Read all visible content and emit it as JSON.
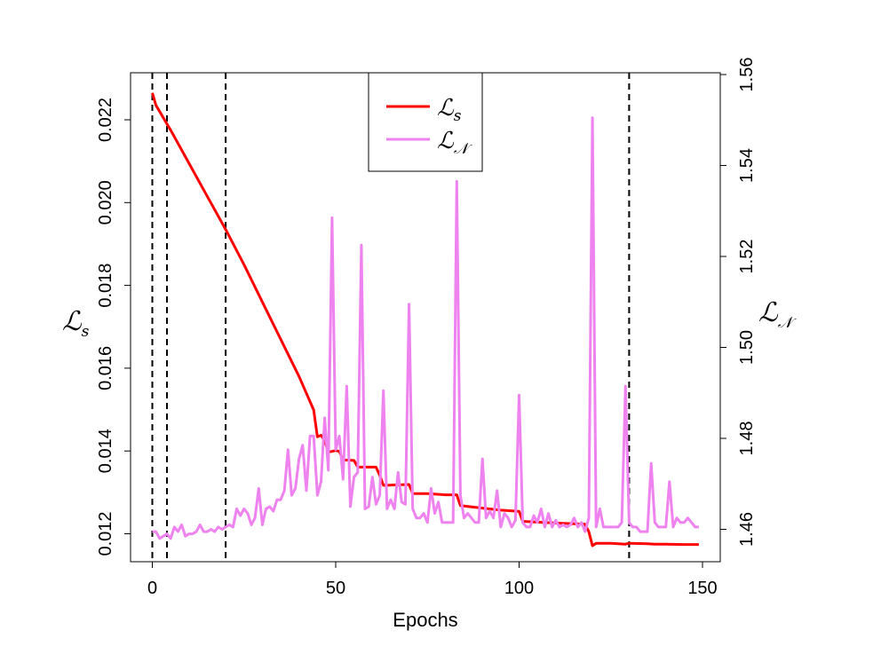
{
  "chart_data": {
    "type": "line",
    "title": "",
    "xlabel": "Epochs",
    "ylabel_left": {
      "main": "ℒ",
      "sub": "s"
    },
    "ylabel_right": {
      "main": "ℒ",
      "sub": "𝒩"
    },
    "xlim": [
      -6,
      155
    ],
    "ylim_left": [
      0.0113,
      0.0233
    ],
    "ylim_right": [
      1.455,
      1.562
    ],
    "x_ticks": [
      0,
      50,
      100,
      150
    ],
    "x_tick_labels": [
      "0",
      "50",
      "100",
      "150"
    ],
    "y_left_ticks": [
      0.012,
      0.014,
      0.016,
      0.018,
      0.02,
      0.022
    ],
    "y_left_tick_labels": [
      "0.012",
      "0.014",
      "0.016",
      "0.018",
      "0.020",
      "0.022"
    ],
    "y_right_ticks": [
      1.46,
      1.48,
      1.5,
      1.52,
      1.54,
      1.56
    ],
    "y_right_tick_labels": [
      "1.46",
      "1.48",
      "1.50",
      "1.52",
      "1.54",
      "1.56"
    ],
    "vlines": [
      0,
      4,
      20,
      130
    ],
    "vline_color": "#000000",
    "legend_position": "top-center",
    "grid": false,
    "series": [
      {
        "name": "ℒs",
        "legend_main": "ℒ",
        "legend_sub": "s",
        "axis": "left",
        "color": "#ff0000",
        "x": [
          0,
          1,
          2,
          3,
          4,
          5,
          10,
          15,
          20,
          25,
          30,
          35,
          40,
          44,
          45,
          46,
          47,
          48,
          50,
          51,
          52,
          53,
          55,
          56,
          57,
          60,
          61,
          62,
          63,
          64,
          66,
          70,
          71,
          75,
          80,
          83,
          84,
          90,
          95,
          100,
          101,
          105,
          110,
          115,
          118,
          119,
          120,
          121,
          125,
          129,
          130,
          135,
          137,
          140,
          145,
          149
        ],
        "y": [
          0.02265,
          0.02235,
          0.0222,
          0.02205,
          0.0219,
          0.02175,
          0.02095,
          0.02015,
          0.01935,
          0.0185,
          0.0176,
          0.0167,
          0.0158,
          0.01499,
          0.01434,
          0.01438,
          0.01425,
          0.01397,
          0.01401,
          0.01399,
          0.01378,
          0.01378,
          0.01377,
          0.01361,
          0.01361,
          0.01361,
          0.01361,
          0.01341,
          0.01317,
          0.01317,
          0.01318,
          0.01319,
          0.01297,
          0.01297,
          0.01294,
          0.01294,
          0.01268,
          0.01262,
          0.01257,
          0.01254,
          0.0123,
          0.01228,
          0.01226,
          0.01224,
          0.01223,
          0.01205,
          0.01171,
          0.01177,
          0.01177,
          0.01175,
          0.01177,
          0.01176,
          0.01175,
          0.01175,
          0.01174,
          0.01174
        ]
      },
      {
        "name": "ℒ𝒩",
        "legend_main": "ℒ",
        "legend_sub": "𝒩",
        "axis": "right",
        "color": "#ee82ee",
        "x": [
          0,
          1,
          2,
          3,
          4,
          5,
          6,
          7,
          8,
          9,
          10,
          11,
          12,
          13,
          14,
          15,
          16,
          17,
          18,
          19,
          20,
          21,
          22,
          23,
          24,
          25,
          26,
          27,
          28,
          29,
          30,
          31,
          32,
          33,
          34,
          35,
          36,
          37,
          38,
          39,
          40,
          41,
          42,
          43,
          44,
          45,
          46,
          47,
          48,
          49,
          50,
          51,
          52,
          53,
          54,
          55,
          56,
          57,
          58,
          59,
          60,
          61,
          62,
          63,
          64,
          65,
          66,
          67,
          68,
          69,
          70,
          71,
          72,
          73,
          74,
          75,
          76,
          77,
          78,
          79,
          80,
          81,
          82,
          83,
          84,
          85,
          86,
          87,
          88,
          89,
          90,
          91,
          92,
          93,
          94,
          95,
          96,
          97,
          98,
          99,
          100,
          101,
          102,
          103,
          104,
          105,
          106,
          107,
          108,
          109,
          110,
          111,
          112,
          113,
          114,
          115,
          116,
          117,
          118,
          119,
          120,
          121,
          122,
          123,
          124,
          125,
          126,
          127,
          128,
          129,
          130,
          131,
          132,
          133,
          134,
          135,
          136,
          137,
          138,
          139,
          140,
          141,
          142,
          143,
          144,
          145,
          146,
          147,
          148,
          149
        ],
        "y": [
          1.4595,
          1.4595,
          1.458,
          1.4585,
          1.459,
          1.458,
          1.4605,
          1.4595,
          1.461,
          1.4585,
          1.459,
          1.459,
          1.4595,
          1.461,
          1.4595,
          1.4595,
          1.46,
          1.4595,
          1.4605,
          1.46,
          1.4605,
          1.461,
          1.4605,
          1.4645,
          1.463,
          1.4645,
          1.4635,
          1.461,
          1.4625,
          1.469,
          1.461,
          1.4645,
          1.465,
          1.464,
          1.4665,
          1.4665,
          1.4685,
          1.4775,
          1.4675,
          1.469,
          1.4755,
          1.4785,
          1.4685,
          1.4805,
          1.4805,
          1.4675,
          1.4705,
          1.4845,
          1.473,
          1.5285,
          1.4775,
          1.4805,
          1.471,
          1.4915,
          1.465,
          1.4715,
          1.4725,
          1.5225,
          1.4645,
          1.465,
          1.4715,
          1.4655,
          1.4675,
          1.4905,
          1.4645,
          1.4665,
          1.4645,
          1.4725,
          1.466,
          1.4655,
          1.5095,
          1.4645,
          1.4625,
          1.4625,
          1.4635,
          1.4615,
          1.469,
          1.4635,
          1.466,
          1.4615,
          1.4615,
          1.4615,
          1.4615,
          1.5365,
          1.4675,
          1.4625,
          1.4635,
          1.4625,
          1.4615,
          1.4615,
          1.4755,
          1.4625,
          1.464,
          1.4625,
          1.4685,
          1.4605,
          1.4635,
          1.4625,
          1.4605,
          1.462,
          1.4895,
          1.4615,
          1.4605,
          1.4605,
          1.463,
          1.4615,
          1.4645,
          1.4605,
          1.4635,
          1.4605,
          1.462,
          1.4605,
          1.461,
          1.4605,
          1.461,
          1.4625,
          1.4605,
          1.4615,
          1.4595,
          1.4625,
          1.5505,
          1.4605,
          1.4645,
          1.4605,
          1.4605,
          1.4605,
          1.4605,
          1.4605,
          1.4615,
          1.4915,
          1.4615,
          1.4605,
          1.4605,
          1.4595,
          1.4595,
          1.4595,
          1.4745,
          1.4615,
          1.4605,
          1.4605,
          1.4605,
          1.4705,
          1.4605,
          1.4625,
          1.4615,
          1.4615,
          1.4625,
          1.4615,
          1.4605,
          1.4605
        ]
      }
    ]
  }
}
